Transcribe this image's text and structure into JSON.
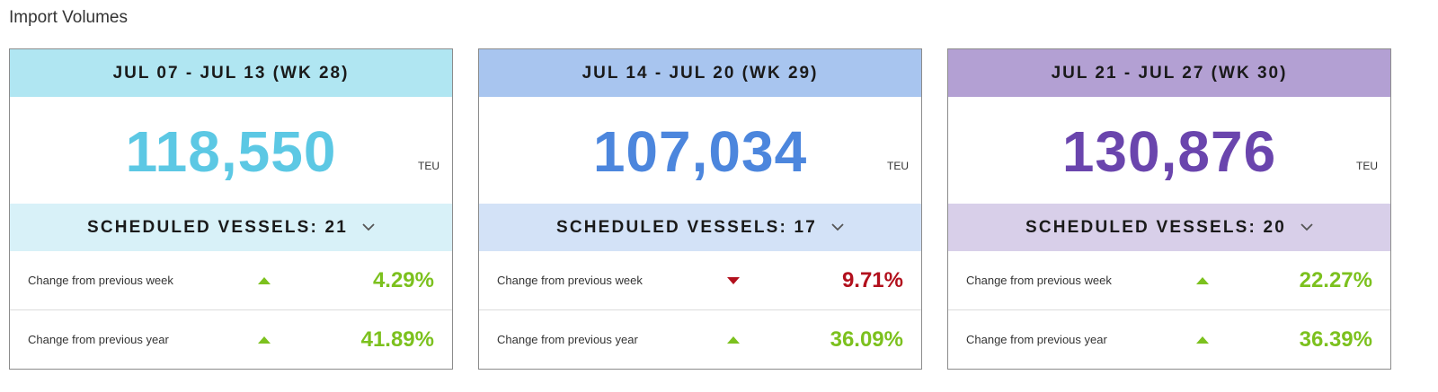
{
  "page": {
    "title": "Import Volumes"
  },
  "colors": {
    "up": "#7cc11e",
    "down": "#b2101d"
  },
  "cards": [
    {
      "header": "JUL 07 - JUL 13 (WK 28)",
      "volume": "118,550",
      "unit": "TEU",
      "vessels": "SCHEDULED VESSELS: 21",
      "theme": {
        "header_bg": "#b0e6f2",
        "number": "#5cc8e4",
        "band_bg": "#d8f1f8"
      },
      "stats": [
        {
          "label": "Change from previous week",
          "direction": "up",
          "value": "4.29%"
        },
        {
          "label": "Change from previous year",
          "direction": "up",
          "value": "41.89%"
        }
      ]
    },
    {
      "header": "JUL 14 - JUL 20 (WK 29)",
      "volume": "107,034",
      "unit": "TEU",
      "vessels": "SCHEDULED VESSELS: 17",
      "theme": {
        "header_bg": "#a8c5ef",
        "number": "#4c86dd",
        "band_bg": "#d3e2f7"
      },
      "stats": [
        {
          "label": "Change from previous week",
          "direction": "down",
          "value": "9.71%"
        },
        {
          "label": "Change from previous year",
          "direction": "up",
          "value": "36.09%"
        }
      ]
    },
    {
      "header": "JUL 21 - JUL 27 (WK 30)",
      "volume": "130,876",
      "unit": "TEU",
      "vessels": "SCHEDULED VESSELS: 20",
      "theme": {
        "header_bg": "#b3a0d3",
        "number": "#6a45ad",
        "band_bg": "#d8cfe9"
      },
      "stats": [
        {
          "label": "Change from previous week",
          "direction": "up",
          "value": "22.27%"
        },
        {
          "label": "Change from previous year",
          "direction": "up",
          "value": "36.39%"
        }
      ]
    }
  ]
}
